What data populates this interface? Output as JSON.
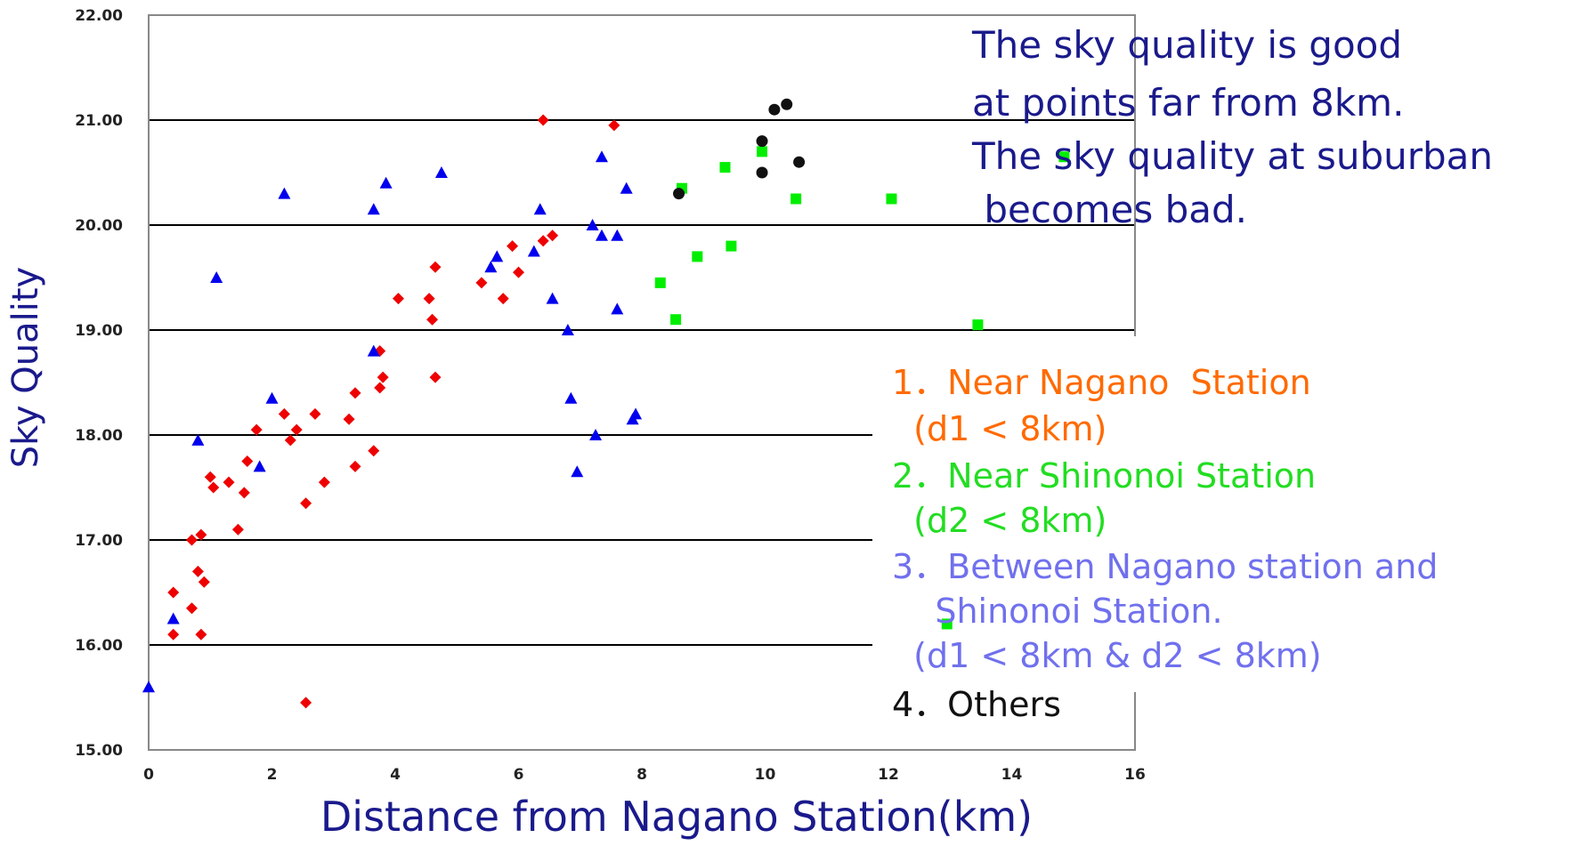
{
  "chart_data": {
    "type": "scatter",
    "title": "",
    "xlabel": "Distance from Nagano Station(km)",
    "ylabel": "Sky Quality",
    "xlim": [
      0,
      16
    ],
    "ylim": [
      15,
      22
    ],
    "x_ticks": [
      "0",
      "2",
      "4",
      "6",
      "8",
      "10",
      "12",
      "14",
      "16"
    ],
    "y_ticks": [
      "15.00",
      "16.00",
      "17.00",
      "18.00",
      "19.00",
      "20.00",
      "21.00",
      "22.00"
    ],
    "grid": "horizontal",
    "annotation_lines": [
      "The sky quality is good",
      "at points far from 8km.",
      "The sky quality at suburban",
      " becomes bad."
    ],
    "legend_lines": [
      {
        "text": "1．Near Nagano  Station",
        "color": "#ff6a00"
      },
      {
        "text": "  (d1 < 8km)",
        "color": "#ff6a00"
      },
      {
        "text": "2．Near Shinonoi Station",
        "color": "#22dd22"
      },
      {
        "text": "  (d2 < 8km)",
        "color": "#22dd22"
      },
      {
        "text": "3．Between Nagano station and",
        "color": "#7070ee"
      },
      {
        "text": "    Shinonoi Station.",
        "color": "#7070ee"
      },
      {
        "text": "  (d1 < 8km & d2 < 8km)",
        "color": "#7070ee"
      },
      {
        "text": "4．Others",
        "color": "#111111"
      }
    ],
    "series": [
      {
        "marker": "diamond",
        "color": "#ee0000",
        "points": [
          [
            0.4,
            16.5
          ],
          [
            0.4,
            16.1
          ],
          [
            0.7,
            17.0
          ],
          [
            0.7,
            16.35
          ],
          [
            0.8,
            16.7
          ],
          [
            0.85,
            17.05
          ],
          [
            0.85,
            16.1
          ],
          [
            0.9,
            16.6
          ],
          [
            1.0,
            17.6
          ],
          [
            1.05,
            17.5
          ],
          [
            1.3,
            17.55
          ],
          [
            1.45,
            17.1
          ],
          [
            1.55,
            17.45
          ],
          [
            1.6,
            17.75
          ],
          [
            1.75,
            18.05
          ],
          [
            2.2,
            18.2
          ],
          [
            2.3,
            17.95
          ],
          [
            2.4,
            18.05
          ],
          [
            2.55,
            17.35
          ],
          [
            2.55,
            15.45
          ],
          [
            2.7,
            18.2
          ],
          [
            2.85,
            17.55
          ],
          [
            3.25,
            18.15
          ],
          [
            3.35,
            18.4
          ],
          [
            3.35,
            17.7
          ],
          [
            3.65,
            17.85
          ],
          [
            3.75,
            18.45
          ],
          [
            3.75,
            18.8
          ],
          [
            3.8,
            18.55
          ],
          [
            4.05,
            19.3
          ],
          [
            4.55,
            19.3
          ],
          [
            4.6,
            19.1
          ],
          [
            4.65,
            19.6
          ],
          [
            4.65,
            18.55
          ],
          [
            5.4,
            19.45
          ],
          [
            5.75,
            19.3
          ],
          [
            5.9,
            19.8
          ],
          [
            6.0,
            19.55
          ],
          [
            6.4,
            19.85
          ],
          [
            6.55,
            19.9
          ],
          [
            6.4,
            21.0
          ],
          [
            7.55,
            20.95
          ]
        ]
      },
      {
        "marker": "square",
        "color": "#00ee00",
        "points": [
          [
            8.3,
            19.45
          ],
          [
            8.55,
            19.1
          ],
          [
            8.65,
            20.35
          ],
          [
            8.9,
            19.7
          ],
          [
            9.35,
            20.55
          ],
          [
            9.45,
            19.8
          ],
          [
            9.95,
            20.7
          ],
          [
            10.5,
            20.25
          ],
          [
            12.05,
            20.25
          ],
          [
            13.45,
            19.05
          ],
          [
            14.85,
            20.65
          ],
          [
            12.95,
            16.2
          ]
        ]
      },
      {
        "marker": "triangle",
        "color": "#0000ee",
        "points": [
          [
            0.0,
            15.6
          ],
          [
            0.4,
            16.25
          ],
          [
            0.8,
            17.95
          ],
          [
            1.1,
            19.5
          ],
          [
            1.8,
            17.7
          ],
          [
            2.0,
            18.35
          ],
          [
            2.2,
            20.3
          ],
          [
            3.65,
            18.8
          ],
          [
            3.65,
            20.15
          ],
          [
            3.85,
            20.4
          ],
          [
            4.75,
            20.5
          ],
          [
            5.55,
            19.6
          ],
          [
            5.65,
            19.7
          ],
          [
            6.25,
            19.75
          ],
          [
            6.35,
            20.15
          ],
          [
            6.55,
            19.3
          ],
          [
            6.8,
            19.0
          ],
          [
            6.85,
            18.35
          ],
          [
            6.95,
            17.65
          ],
          [
            7.2,
            20.0
          ],
          [
            7.25,
            18.0
          ],
          [
            7.35,
            19.9
          ],
          [
            7.35,
            20.65
          ],
          [
            7.6,
            19.9
          ],
          [
            7.6,
            19.2
          ],
          [
            7.75,
            20.35
          ],
          [
            7.85,
            18.15
          ],
          [
            7.9,
            18.2
          ]
        ]
      },
      {
        "marker": "circle",
        "color": "#111111",
        "points": [
          [
            8.6,
            20.3
          ],
          [
            9.95,
            20.8
          ],
          [
            9.95,
            20.5
          ],
          [
            10.15,
            21.1
          ],
          [
            10.35,
            21.15
          ],
          [
            10.55,
            20.6
          ]
        ]
      }
    ]
  }
}
